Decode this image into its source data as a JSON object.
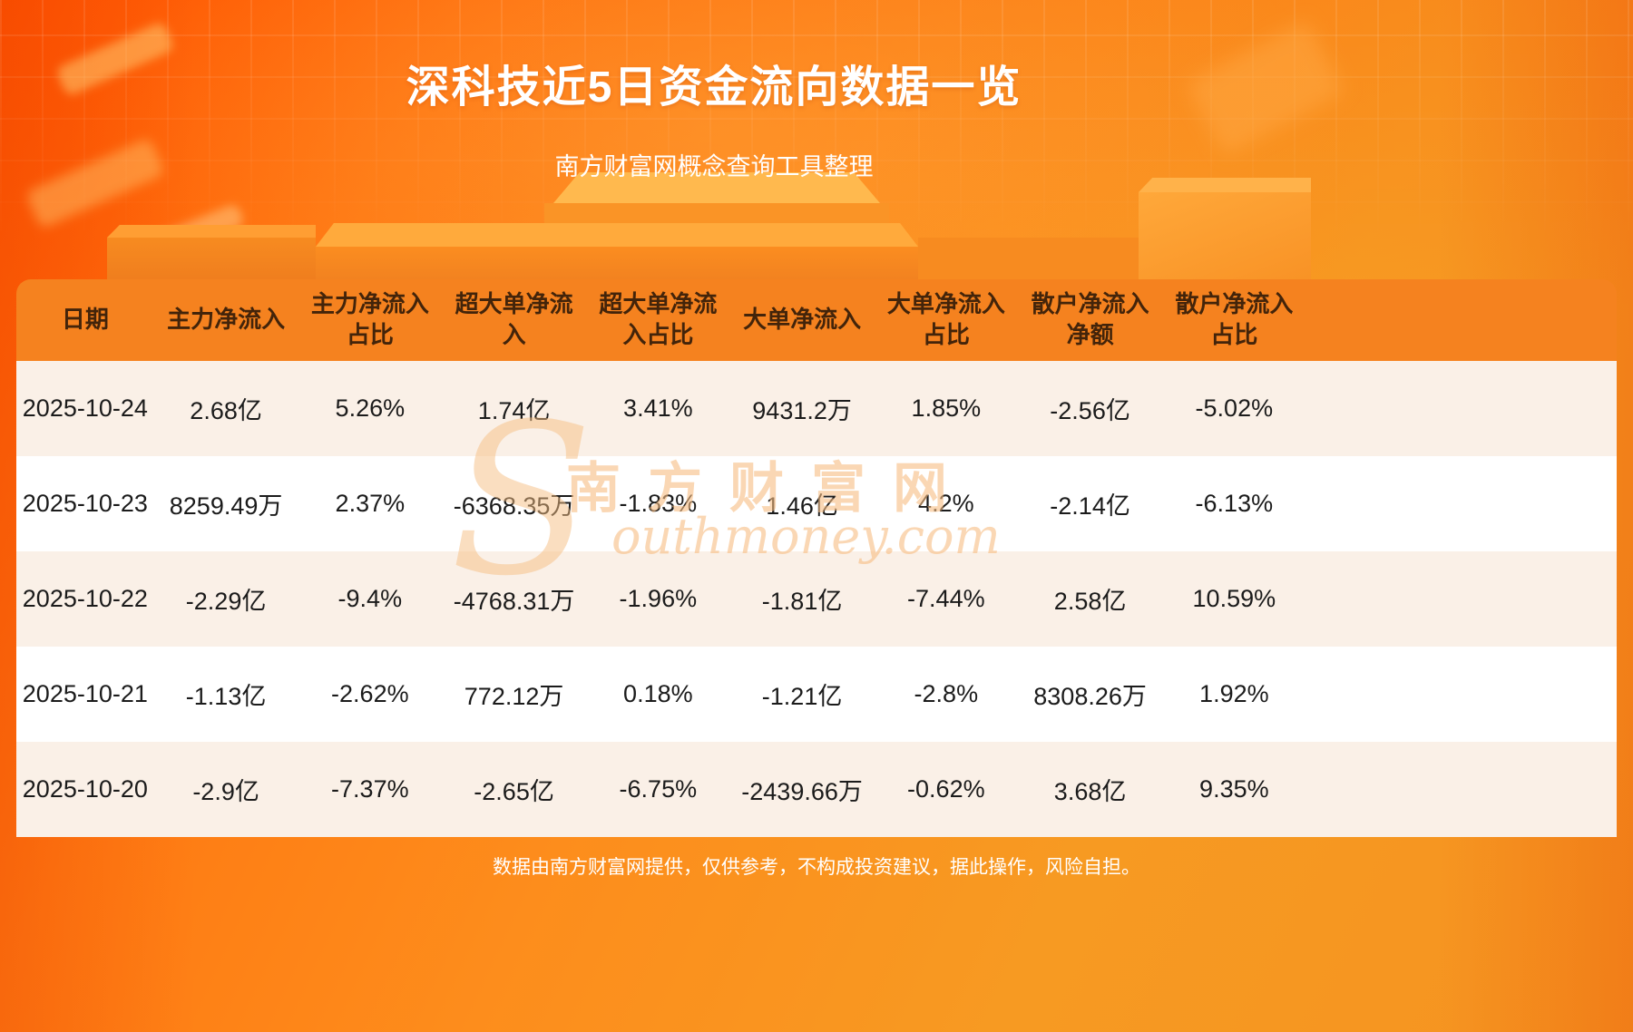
{
  "page": {
    "title": "深科技近5日资金流向数据一览",
    "subtitle": "南方财富网概念查询工具整理",
    "disclaimer": "数据由南方财富网提供，仅供参考，不构成投资建议，据此操作，风险自担。"
  },
  "watermark": {
    "initial": "S",
    "cn": "南方财富网",
    "en": "outhmoney.com"
  },
  "chart_data": {
    "type": "table",
    "title": "深科技近5日资金流向数据一览",
    "columns": [
      "日期",
      "主力净流入",
      "主力净流入占比",
      "超大单净流入",
      "超大单净流入占比",
      "大单净流入",
      "大单净流入占比",
      "散户净流入净额",
      "散户净流入占比"
    ],
    "rows": [
      [
        "2025-10-24",
        "2.68亿",
        "5.26%",
        "1.74亿",
        "3.41%",
        "9431.2万",
        "1.85%",
        "-2.56亿",
        "-5.02%"
      ],
      [
        "2025-10-23",
        "8259.49万",
        "2.37%",
        "-6368.35万",
        "-1.83%",
        "1.46亿",
        "4.2%",
        "-2.14亿",
        "-6.13%"
      ],
      [
        "2025-10-22",
        "-2.29亿",
        "-9.4%",
        "-4768.31万",
        "-1.96%",
        "-1.81亿",
        "-7.44%",
        "2.58亿",
        "10.59%"
      ],
      [
        "2025-10-21",
        "-1.13亿",
        "-2.62%",
        "772.12万",
        "0.18%",
        "-1.21亿",
        "-2.8%",
        "8308.26万",
        "1.92%"
      ],
      [
        "2025-10-20",
        "-2.9亿",
        "-7.37%",
        "-2.65亿",
        "-6.75%",
        "-2439.66万",
        "-0.62%",
        "3.68亿",
        "9.35%"
      ]
    ]
  },
  "colors": {
    "header_bg": "#f5821f",
    "row_alt_bg": "#faf0e7",
    "row_bg": "#ffffff",
    "page_orange": "#f59320",
    "title_color": "#ffffff"
  }
}
